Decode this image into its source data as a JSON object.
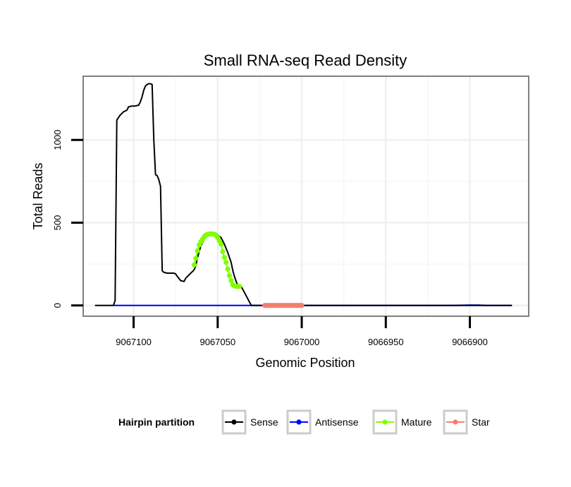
{
  "chart_data": {
    "type": "line",
    "title": "Small RNA-seq Read Density",
    "xlabel": "Genomic Position",
    "ylabel": "Total Reads",
    "xlim": [
      9067130,
      9066865
    ],
    "x_reversed": true,
    "ylim": [
      -65,
      1385
    ],
    "x_ticks": [
      9067100,
      9067050,
      9067000,
      9066950,
      9066900
    ],
    "x_tick_labels": [
      "9067100",
      "9067050",
      "9067000",
      "9066950",
      "9066900"
    ],
    "y_ticks": [
      0,
      500,
      1000
    ],
    "y_tick_labels": [
      "0",
      "500",
      "1000"
    ],
    "grid": true,
    "legend": {
      "title": "Hairpin partition",
      "position": "bottom",
      "entries": [
        {
          "label": "Sense",
          "color": "#000000"
        },
        {
          "label": "Antisense",
          "color": "#0000ff"
        },
        {
          "label": "Mature",
          "color": "#7fff00"
        },
        {
          "label": "Star",
          "color": "#f08070"
        }
      ]
    },
    "series": [
      {
        "name": "Sense",
        "color": "#000000",
        "mode": "line",
        "x": [
          9067123,
          9067112,
          9067111,
          9067110,
          9067109,
          9067108,
          9067106,
          9067104,
          9067103,
          9067101,
          9067099,
          9067097,
          9067096,
          9067095,
          9067094,
          9067093,
          9067092,
          9067091,
          9067090,
          9067089,
          9067088,
          9067087,
          9067086,
          9067085,
          9067084,
          9067083,
          9067082,
          9067080,
          9067078,
          9067076,
          9067075,
          9067074,
          9067072,
          9067070,
          9067069,
          9067068,
          9067066,
          9067065,
          9067064,
          9067063,
          9067062,
          9067060,
          9067058,
          9067057,
          9067055,
          9067052,
          9067050,
          9067048,
          9067046,
          9067044,
          9067042,
          9067041,
          9067040,
          9067039,
          9067038,
          9067036,
          9067030,
          9067000,
          9066950,
          9066910,
          9066890,
          9066875
        ],
        "y": [
          0,
          0,
          30,
          1120,
          1135,
          1150,
          1170,
          1180,
          1200,
          1205,
          1205,
          1210,
          1230,
          1260,
          1300,
          1325,
          1335,
          1340,
          1340,
          1335,
          1000,
          790,
          785,
          760,
          720,
          210,
          200,
          195,
          195,
          195,
          190,
          175,
          150,
          145,
          165,
          175,
          195,
          205,
          215,
          240,
          290,
          360,
          400,
          420,
          430,
          430,
          425,
          410,
          370,
          320,
          260,
          210,
          175,
          145,
          120,
          115,
          0,
          0,
          0,
          0,
          0,
          0
        ]
      },
      {
        "name": "Antisense",
        "color": "#0000ff",
        "mode": "line",
        "x": [
          9067112,
          9067040,
          9067000,
          9066950,
          9066910,
          9066900,
          9066895,
          9066890,
          9066875
        ],
        "y": [
          0,
          0,
          0,
          0,
          0,
          2,
          2,
          0,
          0
        ]
      },
      {
        "name": "Mature",
        "color": "#7fff00",
        "mode": "points",
        "x": [
          9067064,
          9067063,
          9067062,
          9067061,
          9067060,
          9067059,
          9067058,
          9067057,
          9067056,
          9067055,
          9067054,
          9067053,
          9067052,
          9067051,
          9067050,
          9067049,
          9067048,
          9067047,
          9067046,
          9067045,
          9067044,
          9067043,
          9067042,
          9067041,
          9067040,
          9067039,
          9067038,
          9067037
        ],
        "y": [
          245,
          285,
          330,
          365,
          385,
          400,
          415,
          425,
          430,
          432,
          433,
          432,
          430,
          425,
          410,
          390,
          370,
          325,
          290,
          260,
          220,
          180,
          150,
          125,
          118,
          116,
          115,
          115
        ]
      },
      {
        "name": "Star",
        "color": "#f08070",
        "mode": "points",
        "x": [
          9067022,
          9067021,
          9067020,
          9067019,
          9067018,
          9067017,
          9067016,
          9067015,
          9067014,
          9067013,
          9067012,
          9067011,
          9067010,
          9067009,
          9067008,
          9067007,
          9067006,
          9067005,
          9067004,
          9067003,
          9067002,
          9067001,
          9067000
        ],
        "y": [
          0,
          0,
          0,
          0,
          0,
          0,
          0,
          0,
          0,
          0,
          0,
          0,
          0,
          0,
          0,
          0,
          0,
          0,
          0,
          0,
          0,
          0,
          0
        ]
      }
    ]
  }
}
